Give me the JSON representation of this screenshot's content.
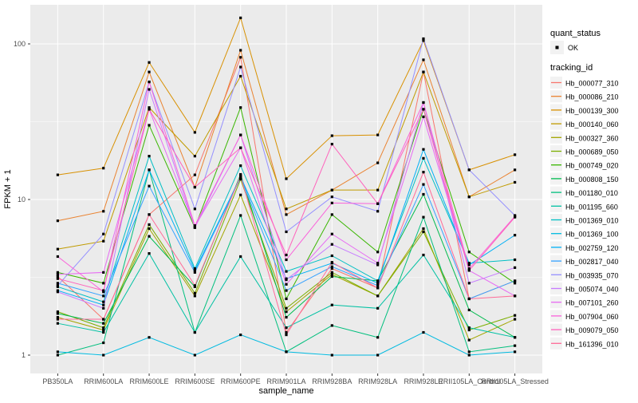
{
  "figure": {
    "background": "#FFFFFF",
    "panel_background": "#EBEBEB",
    "grid_major_color": "#FFFFFF",
    "grid_minor_color": "#F7F7F7",
    "axis_text_color": "#4D4D4D",
    "point_color": "#000000",
    "legend_key_fill": "#F2F2F2"
  },
  "axes": {
    "x_title": "sample_name",
    "y_title": "FPKM + 1"
  },
  "legend": {
    "quant_title": "quant_status",
    "quant_items": [
      {
        "label": "OK",
        "marker": "black-square-point"
      }
    ],
    "tracking_title": "tracking_id"
  },
  "chart_data": {
    "type": "line",
    "title": "",
    "xlabel": "sample_name",
    "ylabel": "FPKM + 1",
    "y_scale": "log10",
    "ylim": [
      0.76,
      178
    ],
    "y_major_ticks": [
      1,
      10,
      100
    ],
    "y_minor_gridlines": [
      3.162,
      31.62
    ],
    "grid": true,
    "legend_position": "right",
    "point_shape": "small-black-square",
    "categories": [
      "PB350LA",
      "RRIM600LA",
      "RRIM600LE",
      "RRIM600SE",
      "RRIM600PE",
      "RRIM901LA",
      "RRIM928BA",
      "RRIM928LA",
      "RRIM928LE",
      "RRII105LA_Control",
      "RRII105LA_Stressed"
    ],
    "series": [
      {
        "name": "Hb_000077_310",
        "color": "#F8766D",
        "values": [
          3.2,
          1.7,
          8.0,
          14.4,
          82,
          1.4,
          3.6,
          2.7,
          66,
          2.3,
          3.0
        ]
      },
      {
        "name": "Hb_000086_210",
        "color": "#EA8331",
        "values": [
          7.3,
          8.4,
          66,
          12,
          91,
          8.0,
          11.5,
          17.2,
          79,
          10.4,
          15.5
        ]
      },
      {
        "name": "Hb_000139_300",
        "color": "#D89000",
        "values": [
          14.4,
          15.9,
          76,
          27,
          147,
          13.6,
          25.7,
          26,
          105,
          15.5,
          19.4
        ]
      },
      {
        "name": "Hb_000140_060",
        "color": "#C09B00",
        "values": [
          4.8,
          5.4,
          39,
          19,
          62,
          8.7,
          11.5,
          11.5,
          66,
          10.4,
          12.9
        ]
      },
      {
        "name": "Hb_000327_360",
        "color": "#A3A500",
        "values": [
          1.75,
          1.45,
          6.5,
          2.4,
          10.7,
          1.9,
          3.3,
          2.4,
          6.5,
          1.25,
          1.7
        ]
      },
      {
        "name": "Hb_000689_050",
        "color": "#7CAE00",
        "values": [
          1.9,
          1.5,
          6.9,
          2.5,
          13.5,
          2.0,
          3.4,
          2.4,
          6.2,
          1.45,
          1.8
        ]
      },
      {
        "name": "Hb_000749_020",
        "color": "#39B600",
        "values": [
          3.4,
          2.9,
          30,
          6.6,
          39,
          2.3,
          8.0,
          4.6,
          38,
          4.6,
          2.9
        ]
      },
      {
        "name": "Hb_000808_150",
        "color": "#00BB4E",
        "values": [
          1.85,
          1.6,
          5.8,
          2.75,
          14.5,
          1.75,
          3.2,
          3.0,
          10.8,
          1.95,
          1.3
        ]
      },
      {
        "name": "Hb_001180_010",
        "color": "#00BF7D",
        "values": [
          1.0,
          1.2,
          15.5,
          1.4,
          7.9,
          1.05,
          1.55,
          1.3,
          7.7,
          1.05,
          1.15
        ]
      },
      {
        "name": "Hb_001195_660",
        "color": "#00C1A3",
        "values": [
          1.6,
          1.4,
          4.5,
          1.4,
          4.3,
          1.5,
          2.1,
          2.0,
          4.4,
          1.5,
          1.3
        ]
      },
      {
        "name": "Hb_001369_010",
        "color": "#00BFC4",
        "values": [
          2.75,
          2.2,
          19,
          3.6,
          16.5,
          3.45,
          4.35,
          3.0,
          18.4,
          3.9,
          4.1
        ]
      },
      {
        "name": "Hb_001369_100",
        "color": "#00BAE0",
        "values": [
          1.05,
          1.0,
          1.3,
          1.0,
          1.35,
          1.05,
          1.0,
          1.0,
          1.4,
          1.0,
          1.05
        ]
      },
      {
        "name": "Hb_002759_120",
        "color": "#00B0F6",
        "values": [
          2.6,
          2.1,
          15.5,
          3.5,
          14,
          3.1,
          3.9,
          2.9,
          21,
          3.8,
          5.9
        ]
      },
      {
        "name": "Hb_002817_040",
        "color": "#35A2FF",
        "values": [
          2.9,
          2.4,
          12.2,
          3.4,
          13.8,
          2.6,
          3.7,
          2.8,
          12.5,
          2.3,
          3.0
        ]
      },
      {
        "name": "Hb_003935_070",
        "color": "#9590FF",
        "values": [
          2.8,
          6.0,
          57,
          8.7,
          71,
          6.2,
          10.4,
          8.4,
          108,
          15.5,
          7.9
        ]
      },
      {
        "name": "Hb_005074_040",
        "color": "#C77CFF",
        "values": [
          2.55,
          2.0,
          51,
          6.6,
          26,
          3.05,
          5.15,
          3.8,
          42,
          2.9,
          3.65
        ]
      },
      {
        "name": "Hb_007101_260",
        "color": "#E76BF3",
        "values": [
          3.3,
          3.4,
          38,
          6.7,
          21.5,
          2.85,
          6.0,
          3.9,
          34,
          3.5,
          2.4
        ]
      },
      {
        "name": "Hb_007904_060",
        "color": "#FA62DB",
        "values": [
          4.3,
          2.55,
          57,
          6.8,
          26,
          4.1,
          9.5,
          9.4,
          42,
          3.6,
          7.8
        ]
      },
      {
        "name": "Hb_009079_050",
        "color": "#FF62BC",
        "values": [
          3.1,
          2.6,
          38,
          12,
          21.5,
          4.4,
          22.7,
          9.4,
          38,
          3.5,
          7.7
        ]
      },
      {
        "name": "Hb_161396_010",
        "color": "#FF6A98",
        "values": [
          1.7,
          1.7,
          8.0,
          2.8,
          14.2,
          1.35,
          3.95,
          2.7,
          15,
          2.3,
          2.4
        ]
      }
    ]
  }
}
